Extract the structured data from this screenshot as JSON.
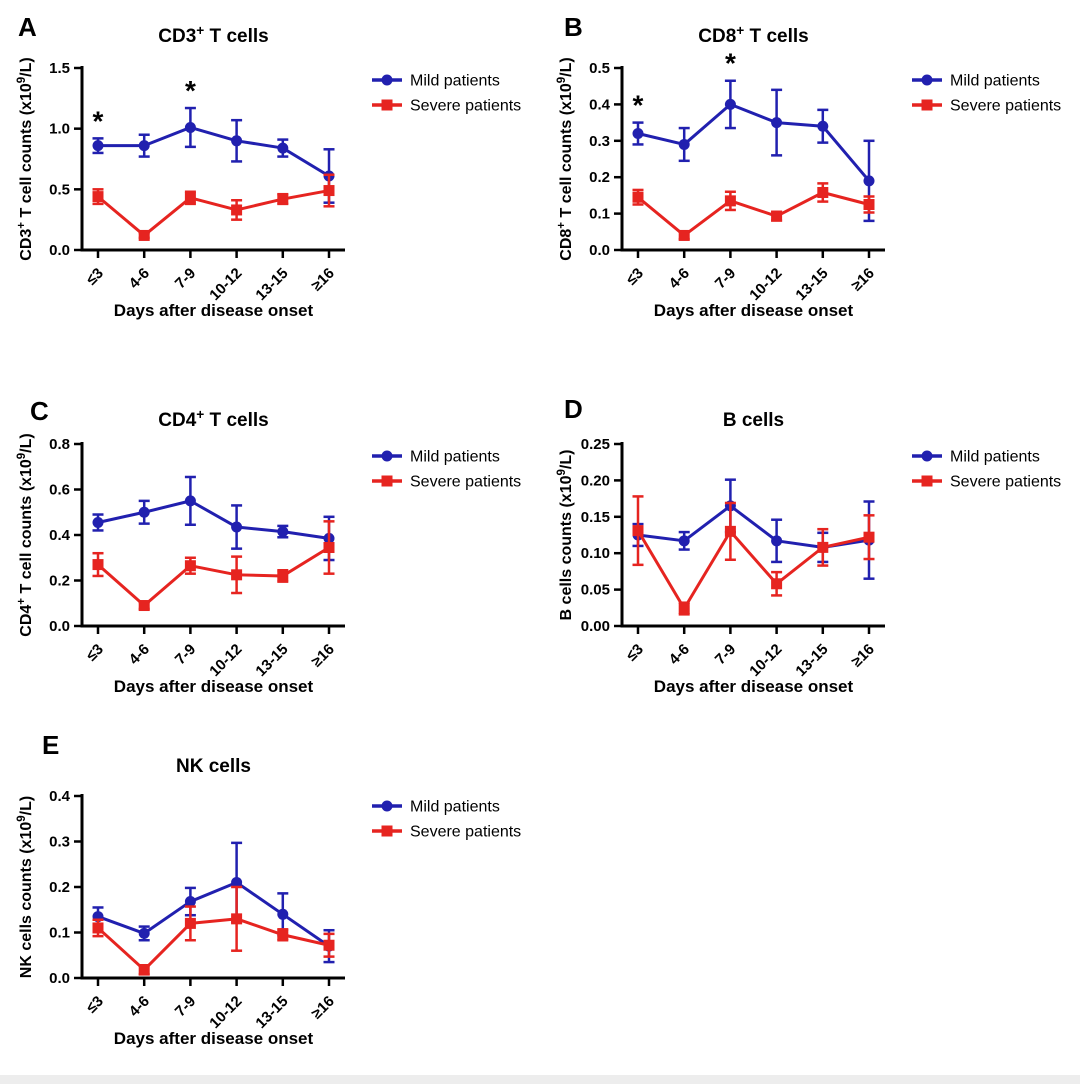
{
  "figure": {
    "background": "#ffffff",
    "x_axis_title": "Days after disease onset",
    "categories": [
      "≤3",
      "4-6",
      "7-9",
      "10-12",
      "13-15",
      "≥16"
    ],
    "significance_symbol": "*",
    "colors": {
      "mild": "#2120af",
      "severe": "#e62420",
      "axis": "#000000"
    },
    "legend": {
      "position": "right",
      "items": [
        {
          "label": "Mild patients",
          "color": "#2120af",
          "marker": "circle"
        },
        {
          "label": "Severe patients",
          "color": "#e62420",
          "marker": "square"
        }
      ]
    }
  },
  "chart_data": [
    {
      "panel": "A",
      "type": "line",
      "title_text": "CD3+ T cells",
      "title": [
        {
          "t": "CD3"
        },
        {
          "t": "+",
          "sup": true
        },
        {
          "t": " T cells"
        }
      ],
      "ylabel_text": "CD3+ T cell counts (x109/L)",
      "ylabel": [
        {
          "t": "CD3"
        },
        {
          "t": "+",
          "sup": true
        },
        {
          "t": " T cell counts (x10"
        },
        {
          "t": "9",
          "sup": true
        },
        {
          "t": "/L)"
        }
      ],
      "xlabel": "Days after disease onset",
      "categories": [
        "≤3",
        "4-6",
        "7-9",
        "10-12",
        "13-15",
        "≥16"
      ],
      "ylim": [
        0,
        1.5
      ],
      "yticks": [
        "0.0",
        "0.5",
        "1.0",
        "1.5"
      ],
      "grid": false,
      "series": [
        {
          "name": "Mild patients",
          "color": "#2120af",
          "marker": "circle",
          "values": [
            0.86,
            0.86,
            1.01,
            0.9,
            0.84,
            0.61
          ],
          "errors": [
            0.06,
            0.09,
            0.16,
            0.17,
            0.07,
            0.22
          ]
        },
        {
          "name": "Severe patients",
          "color": "#e62420",
          "marker": "square",
          "values": [
            0.44,
            0.12,
            0.43,
            0.33,
            0.42,
            0.49
          ],
          "errors": [
            0.06,
            0.02,
            0.05,
            0.08,
            0.04,
            0.13
          ]
        }
      ],
      "stars": [
        0,
        2
      ]
    },
    {
      "panel": "B",
      "type": "line",
      "title_text": "CD8+ T cells",
      "title": [
        {
          "t": "CD8"
        },
        {
          "t": "+",
          "sup": true
        },
        {
          "t": " T cells"
        }
      ],
      "ylabel_text": "CD8+ T cell counts (x109/L)",
      "ylabel": [
        {
          "t": "CD8"
        },
        {
          "t": "+",
          "sup": true
        },
        {
          "t": " T cell counts (x10"
        },
        {
          "t": "9",
          "sup": true
        },
        {
          "t": "/L)"
        }
      ],
      "xlabel": "Days after disease onset",
      "categories": [
        "≤3",
        "4-6",
        "7-9",
        "10-12",
        "13-15",
        "≥16"
      ],
      "ylim": [
        0,
        0.5
      ],
      "yticks": [
        "0.0",
        "0.1",
        "0.2",
        "0.3",
        "0.4",
        "0.5"
      ],
      "grid": false,
      "series": [
        {
          "name": "Mild patients",
          "color": "#2120af",
          "marker": "circle",
          "values": [
            0.32,
            0.29,
            0.4,
            0.35,
            0.34,
            0.19
          ],
          "errors": [
            0.03,
            0.045,
            0.065,
            0.09,
            0.045,
            0.11
          ]
        },
        {
          "name": "Severe patients",
          "color": "#e62420",
          "marker": "square",
          "values": [
            0.145,
            0.04,
            0.135,
            0.093,
            0.158,
            0.125
          ],
          "errors": [
            0.02,
            0.01,
            0.025,
            0.012,
            0.025,
            0.022
          ]
        }
      ],
      "stars": [
        0,
        2
      ]
    },
    {
      "panel": "C",
      "type": "line",
      "title_text": "CD4+ T cells",
      "title": [
        {
          "t": "CD4"
        },
        {
          "t": "+",
          "sup": true
        },
        {
          "t": " T cells"
        }
      ],
      "ylabel_text": "CD4+ T cell counts (x109/L)",
      "ylabel": [
        {
          "t": "CD4"
        },
        {
          "t": "+",
          "sup": true
        },
        {
          "t": " T cell counts (x10"
        },
        {
          "t": "9",
          "sup": true
        },
        {
          "t": "/L)"
        }
      ],
      "xlabel": "Days after disease onset",
      "categories": [
        "≤3",
        "4-6",
        "7-9",
        "10-12",
        "13-15",
        "≥16"
      ],
      "ylim": [
        0,
        0.8
      ],
      "yticks": [
        "0.0",
        "0.2",
        "0.4",
        "0.6",
        "0.8"
      ],
      "grid": false,
      "series": [
        {
          "name": "Mild patients",
          "color": "#2120af",
          "marker": "circle",
          "values": [
            0.455,
            0.5,
            0.55,
            0.435,
            0.415,
            0.385
          ],
          "errors": [
            0.035,
            0.05,
            0.105,
            0.095,
            0.025,
            0.095
          ]
        },
        {
          "name": "Severe patients",
          "color": "#e62420",
          "marker": "square",
          "values": [
            0.27,
            0.09,
            0.265,
            0.225,
            0.22,
            0.345
          ],
          "errors": [
            0.05,
            0.015,
            0.035,
            0.08,
            0.025,
            0.115
          ]
        }
      ],
      "stars": []
    },
    {
      "panel": "D",
      "type": "line",
      "title_text": "B cells",
      "title": [
        {
          "t": "B cells"
        }
      ],
      "ylabel_text": "B cells counts (x109/L)",
      "ylabel": [
        {
          "t": "B cells counts (x10"
        },
        {
          "t": "9",
          "sup": true
        },
        {
          "t": "/L)"
        }
      ],
      "xlabel": "Days after disease onset",
      "categories": [
        "≤3",
        "4-6",
        "7-9",
        "10-12",
        "13-15",
        "≥16"
      ],
      "ylim": [
        0,
        0.25
      ],
      "yticks": [
        "0.00",
        "0.05",
        "0.10",
        "0.15",
        "0.20",
        "0.25"
      ],
      "grid": false,
      "series": [
        {
          "name": "Mild patients",
          "color": "#2120af",
          "marker": "circle",
          "values": [
            0.125,
            0.117,
            0.165,
            0.117,
            0.108,
            0.118
          ],
          "errors": [
            0.015,
            0.012,
            0.036,
            0.029,
            0.02,
            0.053
          ]
        },
        {
          "name": "Severe patients",
          "color": "#e62420",
          "marker": "square",
          "values": [
            0.131,
            0.024,
            0.13,
            0.058,
            0.108,
            0.122
          ],
          "errors": [
            0.047,
            0.008,
            0.039,
            0.016,
            0.025,
            0.03
          ]
        }
      ],
      "stars": []
    },
    {
      "panel": "E",
      "type": "line",
      "title_text": "NK cells",
      "title": [
        {
          "t": "NK cells"
        }
      ],
      "ylabel_text": "NK cells counts (x109/L)",
      "ylabel": [
        {
          "t": "NK cells counts (x10"
        },
        {
          "t": "9",
          "sup": true
        },
        {
          "t": "/L)"
        }
      ],
      "xlabel": "Days after disease onset",
      "categories": [
        "≤3",
        "4-6",
        "7-9",
        "10-12",
        "13-15",
        "≥16"
      ],
      "ylim": [
        0,
        0.4
      ],
      "yticks": [
        "0.0",
        "0.1",
        "0.2",
        "0.3",
        "0.4"
      ],
      "grid": false,
      "series": [
        {
          "name": "Mild patients",
          "color": "#2120af",
          "marker": "circle",
          "values": [
            0.135,
            0.098,
            0.168,
            0.21,
            0.14,
            0.07
          ],
          "errors": [
            0.02,
            0.015,
            0.03,
            0.087,
            0.046,
            0.035
          ]
        },
        {
          "name": "Severe patients",
          "color": "#e62420",
          "marker": "square",
          "values": [
            0.11,
            0.018,
            0.12,
            0.13,
            0.095,
            0.072
          ],
          "errors": [
            0.018,
            0.01,
            0.037,
            0.07,
            0.012,
            0.025
          ]
        }
      ],
      "stars": []
    }
  ]
}
